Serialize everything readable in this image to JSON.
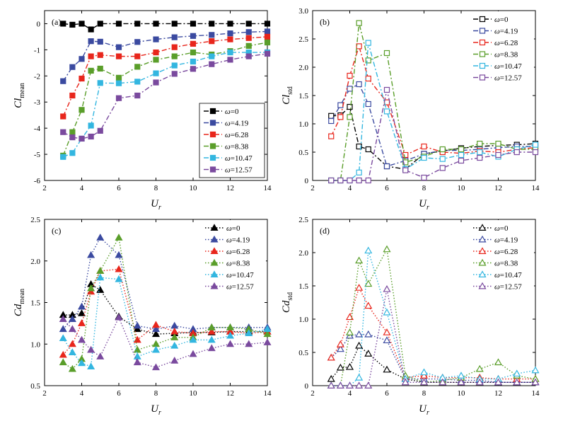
{
  "chart_data": [
    {
      "type": "line",
      "panel_label": "(a)",
      "ylabel_main": "Cl",
      "ylabel_sub": "mean",
      "xlabel_main": "U",
      "xlabel_sub": "r",
      "xlim": [
        2,
        14
      ],
      "ylim": [
        -6,
        0.5
      ],
      "xticks": [
        2,
        4,
        6,
        8,
        10,
        12,
        14
      ],
      "yticks": [
        -6,
        -5,
        -4,
        -3,
        -2,
        -1,
        0
      ],
      "legend_position": "bottom-right",
      "marker": "square-filled",
      "line_style": "dashdot",
      "series": [
        {
          "name": "ω=0",
          "color": "#000000",
          "x": [
            3,
            3.5,
            4,
            4.5,
            5,
            6,
            7,
            8,
            9,
            10,
            11,
            12,
            13,
            14
          ],
          "y": [
            0,
            -0.04,
            0,
            -0.22,
            0,
            0,
            0,
            0,
            0,
            0,
            0,
            0,
            0,
            0
          ]
        },
        {
          "name": "ω=4.19",
          "color": "#3b4aa0",
          "x": [
            3,
            3.5,
            4,
            4.5,
            5,
            6,
            7,
            8,
            9,
            10,
            11,
            12,
            13,
            14
          ],
          "y": [
            -2.2,
            -1.66,
            -1.35,
            -0.67,
            -0.69,
            -0.9,
            -0.7,
            -0.6,
            -0.52,
            -0.47,
            -0.43,
            -0.37,
            -0.32,
            -0.3
          ]
        },
        {
          "name": "ω=6.28",
          "color": "#e8261c",
          "x": [
            3,
            3.5,
            4,
            4.5,
            5,
            6,
            7,
            8,
            9,
            10,
            11,
            12,
            13,
            14
          ],
          "y": [
            -3.55,
            -2.75,
            -2.1,
            -1.25,
            -1.2,
            -1.25,
            -1.25,
            -1.1,
            -0.9,
            -0.77,
            -0.67,
            -0.6,
            -0.55,
            -0.5
          ]
        },
        {
          "name": "ω=8.38",
          "color": "#5a9e2a",
          "x": [
            3,
            3.5,
            4,
            4.5,
            5,
            6,
            7,
            8,
            9,
            10,
            11,
            12,
            13,
            14
          ],
          "y": [
            -5.05,
            -4.15,
            -3.3,
            -1.8,
            -1.72,
            -2.07,
            -1.65,
            -1.38,
            -1.25,
            -1.1,
            -1.18,
            -1.05,
            -0.85,
            -0.72
          ]
        },
        {
          "name": "ω=10.47",
          "color": "#33b6e0",
          "x": [
            3,
            3.5,
            4,
            4.5,
            5,
            6,
            7,
            8,
            9,
            10,
            11,
            12,
            13,
            14
          ],
          "y": [
            -5.1,
            -4.95,
            -4.4,
            -3.9,
            -2.27,
            -2.28,
            -2.22,
            -1.9,
            -1.6,
            -1.45,
            -1.25,
            -1.1,
            -1.1,
            -1.1
          ]
        },
        {
          "name": "ω=12.57",
          "color": "#7a4a9e",
          "x": [
            3,
            3.5,
            4,
            4.5,
            5,
            6,
            7,
            8,
            9,
            10,
            11,
            12,
            13,
            14
          ],
          "y": [
            -4.15,
            -4.35,
            -4.4,
            -4.32,
            -4.1,
            -2.85,
            -2.75,
            -2.25,
            -1.92,
            -1.73,
            -1.55,
            -1.38,
            -1.25,
            -1.15
          ]
        }
      ]
    },
    {
      "type": "line",
      "panel_label": "(b)",
      "ylabel_main": "Cl",
      "ylabel_sub": "std",
      "xlabel_main": "U",
      "xlabel_sub": "r",
      "xlim": [
        2,
        14
      ],
      "ylim": [
        0,
        3
      ],
      "xticks": [
        2,
        4,
        6,
        8,
        10,
        12,
        14
      ],
      "yticks": [
        0,
        0.5,
        1,
        1.5,
        2,
        2.5,
        3
      ],
      "ytick_labels": [
        "0",
        "0.5",
        "1.0",
        "1.5",
        "2.0",
        "2.5",
        "3.0"
      ],
      "legend_position": "top-right",
      "marker": "square-open",
      "line_style": "dashdot",
      "series": [
        {
          "name": "ω=0",
          "color": "#000000",
          "x": [
            3,
            3.5,
            4,
            4.5,
            5,
            6,
            7,
            8,
            9,
            10,
            11,
            12,
            13,
            14
          ],
          "y": [
            1.14,
            1.15,
            1.3,
            0.6,
            0.55,
            0.25,
            0.2,
            0.47,
            0.52,
            0.57,
            0.6,
            0.62,
            0.63,
            0.65
          ]
        },
        {
          "name": "ω=4.19",
          "color": "#3b4aa0",
          "x": [
            3,
            3.5,
            4,
            4.5,
            5,
            6,
            7,
            8,
            9,
            10,
            11,
            12,
            13,
            14
          ],
          "y": [
            1.05,
            1.33,
            1.62,
            1.7,
            1.35,
            0.25,
            0.35,
            0.47,
            0.53,
            0.53,
            0.55,
            0.58,
            0.6,
            0.6
          ]
        },
        {
          "name": "ω=6.28",
          "color": "#e8261c",
          "x": [
            3,
            3.5,
            4,
            4.5,
            5,
            6,
            7,
            8,
            9,
            10,
            11,
            12,
            13,
            14
          ],
          "y": [
            0.78,
            1.12,
            1.85,
            2.37,
            1.8,
            1.38,
            0.45,
            0.6,
            0.5,
            0.48,
            0.52,
            0.5,
            0.55,
            0.58
          ]
        },
        {
          "name": "ω=8.38",
          "color": "#5a9e2a",
          "x": [
            3,
            3.5,
            4,
            4.5,
            5,
            6,
            7,
            8,
            9,
            10,
            11,
            12,
            13,
            14
          ],
          "y": [
            0,
            0,
            1.12,
            2.78,
            2.12,
            2.25,
            0.32,
            0.42,
            0.55,
            0.55,
            0.65,
            0.65,
            0.55,
            0.55
          ]
        },
        {
          "name": "ω=10.47",
          "color": "#33b6e0",
          "x": [
            3,
            3.5,
            4,
            4.5,
            5,
            6,
            7,
            8,
            9,
            10,
            11,
            12,
            13,
            14
          ],
          "y": [
            0,
            0,
            0,
            0.14,
            2.43,
            1.22,
            0.2,
            0.4,
            0.38,
            0.45,
            0.5,
            0.42,
            0.55,
            0.63
          ]
        },
        {
          "name": "ω=12.57",
          "color": "#7a4a9e",
          "x": [
            3,
            3.5,
            4,
            4.5,
            5,
            6,
            7,
            8,
            9,
            10,
            11,
            12,
            13,
            14
          ],
          "y": [
            0,
            0,
            0,
            0,
            0,
            1.6,
            0.18,
            0.05,
            0.22,
            0.35,
            0.4,
            0.45,
            0.5,
            0.5
          ]
        }
      ]
    },
    {
      "type": "line",
      "panel_label": "(c)",
      "ylabel_main": "Cd",
      "ylabel_sub": "mean",
      "xlabel_main": "U",
      "xlabel_sub": "r",
      "xlim": [
        2,
        14
      ],
      "ylim": [
        0.5,
        2.5
      ],
      "xticks": [
        2,
        4,
        6,
        8,
        10,
        12,
        14
      ],
      "yticks": [
        0.5,
        1,
        1.5,
        2,
        2.5
      ],
      "ytick_labels": [
        "0.5",
        "1.0",
        "1.5",
        "2.0",
        "2.5"
      ],
      "legend_position": "top-right",
      "marker": "triangle-filled",
      "line_style": "dotted",
      "series": [
        {
          "name": "ω=0",
          "color": "#000000",
          "x": [
            3,
            3.5,
            4,
            4.5,
            5,
            6,
            7,
            8,
            9,
            10,
            11,
            12,
            13,
            14
          ],
          "y": [
            1.35,
            1.35,
            1.37,
            1.72,
            1.65,
            1.33,
            1.18,
            1.12,
            1.13,
            1.14,
            1.14,
            1.15,
            1.15,
            1.15
          ]
        },
        {
          "name": "ω=4.19",
          "color": "#3b4aa0",
          "x": [
            3,
            3.5,
            4,
            4.5,
            5,
            6,
            7,
            8,
            9,
            10,
            11,
            12,
            13,
            14
          ],
          "y": [
            1.18,
            1.3,
            1.45,
            2.07,
            2.28,
            2.07,
            1.22,
            1.18,
            1.22,
            1.18,
            1.2,
            1.2,
            1.2,
            1.2
          ]
        },
        {
          "name": "ω=6.28",
          "color": "#e8261c",
          "x": [
            3,
            3.5,
            4,
            4.5,
            5,
            6,
            7,
            8,
            9,
            10,
            11,
            12,
            13,
            14
          ],
          "y": [
            0.87,
            1.0,
            1.25,
            1.63,
            1.88,
            1.9,
            1.05,
            1.23,
            1.15,
            1.13,
            1.15,
            1.15,
            1.13,
            1.15
          ]
        },
        {
          "name": "ω=8.38",
          "color": "#5a9e2a",
          "x": [
            3,
            3.5,
            4,
            4.5,
            5,
            6,
            7,
            8,
            9,
            10,
            11,
            12,
            13,
            14
          ],
          "y": [
            0.78,
            0.7,
            0.82,
            1.67,
            1.88,
            2.28,
            0.93,
            1.0,
            1.08,
            1.08,
            1.2,
            1.2,
            1.18,
            1.12
          ]
        },
        {
          "name": "ω=10.47",
          "color": "#33b6e0",
          "x": [
            3,
            3.5,
            4,
            4.5,
            5,
            6,
            7,
            8,
            9,
            10,
            11,
            12,
            13,
            14
          ],
          "y": [
            1.07,
            0.9,
            0.77,
            0.73,
            1.8,
            1.78,
            0.85,
            0.93,
            0.98,
            1.05,
            1.05,
            1.1,
            1.13,
            1.18
          ]
        },
        {
          "name": "ω=12.57",
          "color": "#7a4a9e",
          "x": [
            3,
            3.5,
            4,
            4.5,
            5,
            6,
            7,
            8,
            9,
            10,
            11,
            12,
            13,
            14
          ],
          "y": [
            1.3,
            1.18,
            1.05,
            0.93,
            0.85,
            1.32,
            0.78,
            0.72,
            0.8,
            0.88,
            0.95,
            1.0,
            1.0,
            1.02
          ]
        }
      ]
    },
    {
      "type": "line",
      "panel_label": "(d)",
      "ylabel_main": "Cd",
      "ylabel_sub": "std",
      "xlabel_main": "U",
      "xlabel_sub": "r",
      "xlim": [
        2,
        14
      ],
      "ylim": [
        0,
        2.5
      ],
      "xticks": [
        2,
        4,
        6,
        8,
        10,
        12,
        14
      ],
      "yticks": [
        0,
        0.5,
        1,
        1.5,
        2,
        2.5
      ],
      "ytick_labels": [
        "0",
        "0.5",
        "1.0",
        "1.5",
        "2.0",
        "2.5"
      ],
      "legend_position": "top-right",
      "marker": "triangle-open",
      "line_style": "dotted",
      "series": [
        {
          "name": "ω=0",
          "color": "#000000",
          "x": [
            3,
            3.5,
            4,
            4.5,
            5,
            6,
            7,
            8,
            9,
            10,
            11,
            12,
            13,
            14
          ],
          "y": [
            0.1,
            0.27,
            0.28,
            0.6,
            0.48,
            0.24,
            0.1,
            0.05,
            0.05,
            0.05,
            0.05,
            0.05,
            0.05,
            0.05
          ]
        },
        {
          "name": "ω=4.19",
          "color": "#3b4aa0",
          "x": [
            3,
            3.5,
            4,
            4.5,
            5,
            6,
            7,
            8,
            9,
            10,
            11,
            12,
            13,
            14
          ],
          "y": [
            0.42,
            0.55,
            0.75,
            0.77,
            0.77,
            0.68,
            0.1,
            0.1,
            0.1,
            0.08,
            0.08,
            0.05,
            0.05,
            0.05
          ]
        },
        {
          "name": "ω=6.28",
          "color": "#e8261c",
          "x": [
            3,
            3.5,
            4,
            4.5,
            5,
            6,
            7,
            8,
            9,
            10,
            11,
            12,
            13,
            14
          ],
          "y": [
            0.42,
            0.62,
            1.03,
            1.47,
            1.2,
            0.8,
            0.12,
            0.15,
            0.12,
            0.12,
            0.12,
            0.1,
            0.1,
            0.1
          ]
        },
        {
          "name": "ω=8.38",
          "color": "#5a9e2a",
          "x": [
            3,
            3.5,
            4,
            4.5,
            5,
            6,
            7,
            8,
            9,
            10,
            11,
            12,
            13,
            14
          ],
          "y": [
            0,
            0,
            0.8,
            1.88,
            1.53,
            2.05,
            0.15,
            0.05,
            0.08,
            0.12,
            0.25,
            0.35,
            0.15,
            0.1
          ]
        },
        {
          "name": "ω=10.47",
          "color": "#33b6e0",
          "x": [
            3,
            3.5,
            4,
            4.5,
            5,
            6,
            7,
            8,
            9,
            10,
            11,
            12,
            13,
            14
          ],
          "y": [
            0,
            0,
            0,
            0.12,
            2.03,
            1.1,
            0.1,
            0.2,
            0.12,
            0.15,
            0.1,
            0.1,
            0.18,
            0.23
          ]
        },
        {
          "name": "ω=12.57",
          "color": "#7a4a9e",
          "x": [
            3,
            3.5,
            4,
            4.5,
            5,
            6,
            7,
            8,
            9,
            10,
            11,
            12,
            13,
            14
          ],
          "y": [
            0,
            0,
            0,
            0,
            0,
            1.45,
            0.05,
            0.05,
            0.05,
            0.05,
            0.05,
            0.05,
            0.05,
            0.05
          ]
        }
      ]
    }
  ]
}
